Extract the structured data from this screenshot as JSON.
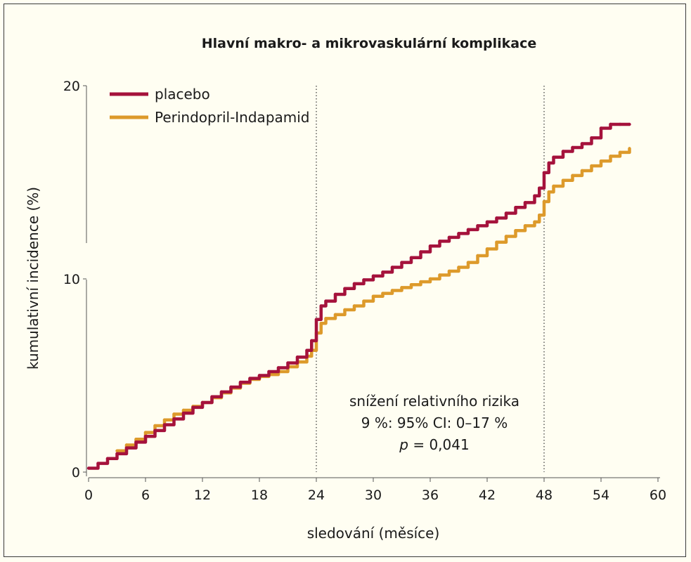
{
  "chart_data": {
    "type": "line",
    "title": "Hlavní makro- a mikrovaskulární komplikace",
    "xlabel": "sledování (měsíce)",
    "ylabel": "kumulativní incidence (%)",
    "xlim": [
      0,
      60
    ],
    "ylim": [
      0,
      20
    ],
    "xticks": [
      0,
      6,
      12,
      18,
      24,
      30,
      36,
      42,
      48,
      54,
      60
    ],
    "yticks": [
      0,
      10,
      20
    ],
    "grid": false,
    "legend_position": "top-left",
    "reference_lines_x": [
      24,
      48
    ],
    "annotation": {
      "line1": "snížení relativního rizika",
      "line2": "9 %: 95% CI: 0–17 %",
      "p_symbol": "p",
      "p_value": " = 0,041"
    },
    "series": [
      {
        "name": "placebo",
        "color": "#a5123c",
        "x": [
          0,
          1,
          2,
          3,
          4,
          5,
          6,
          7,
          8,
          9,
          10,
          11,
          12,
          13,
          14,
          15,
          16,
          17,
          18,
          19,
          20,
          21,
          22,
          23,
          23.5,
          24,
          24.5,
          25,
          26,
          27,
          28,
          29,
          30,
          31,
          32,
          33,
          34,
          35,
          36,
          37,
          38,
          39,
          40,
          41,
          42,
          43,
          44,
          45,
          46,
          47,
          47.5,
          48,
          48.5,
          49,
          50,
          51,
          52,
          53,
          54,
          55,
          56,
          57
        ],
        "y": [
          0.2,
          0.45,
          0.7,
          0.95,
          1.25,
          1.55,
          1.85,
          2.15,
          2.45,
          2.75,
          3.05,
          3.35,
          3.6,
          3.9,
          4.15,
          4.4,
          4.65,
          4.85,
          5.0,
          5.2,
          5.4,
          5.65,
          5.95,
          6.3,
          6.8,
          7.9,
          8.6,
          8.85,
          9.2,
          9.5,
          9.75,
          9.95,
          10.15,
          10.35,
          10.6,
          10.85,
          11.1,
          11.4,
          11.7,
          11.95,
          12.15,
          12.35,
          12.55,
          12.75,
          12.95,
          13.15,
          13.4,
          13.7,
          13.95,
          14.3,
          14.7,
          15.5,
          16.0,
          16.3,
          16.6,
          16.8,
          17.0,
          17.3,
          17.8,
          18.0,
          18.0,
          18.0
        ]
      },
      {
        "name": "Perindopril-Indapamid",
        "color": "#dd9a2b",
        "x": [
          3,
          4,
          5,
          6,
          7,
          8,
          9,
          10,
          11,
          12,
          13,
          14,
          15,
          16,
          17,
          18,
          19,
          20,
          21,
          22,
          23,
          23.5,
          24,
          24.5,
          25,
          26,
          27,
          28,
          29,
          30,
          31,
          32,
          33,
          34,
          35,
          36,
          37,
          38,
          39,
          40,
          41,
          42,
          43,
          44,
          45,
          46,
          47,
          47.5,
          48,
          48.5,
          49,
          50,
          51,
          52,
          53,
          54,
          55,
          56,
          57
        ],
        "y": [
          1.1,
          1.4,
          1.7,
          2.05,
          2.4,
          2.7,
          3.0,
          3.2,
          3.4,
          3.6,
          3.85,
          4.1,
          4.35,
          4.6,
          4.8,
          4.95,
          5.05,
          5.2,
          5.45,
          5.7,
          6.0,
          6.3,
          7.2,
          7.7,
          7.95,
          8.15,
          8.4,
          8.6,
          8.85,
          9.1,
          9.25,
          9.4,
          9.55,
          9.7,
          9.85,
          10.0,
          10.2,
          10.4,
          10.6,
          10.85,
          11.2,
          11.55,
          11.9,
          12.2,
          12.5,
          12.75,
          12.95,
          13.3,
          14.0,
          14.5,
          14.8,
          15.1,
          15.35,
          15.6,
          15.85,
          16.1,
          16.35,
          16.55,
          16.75
        ]
      }
    ]
  }
}
